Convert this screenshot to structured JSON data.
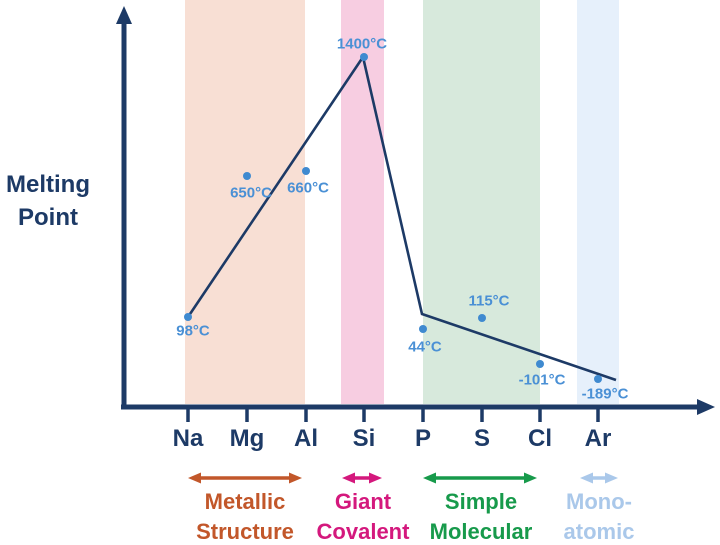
{
  "ylabel": {
    "line1": "Melting",
    "line2": "Point"
  },
  "chart_data": {
    "type": "line",
    "title": "",
    "xlabel": "",
    "ylabel": "Melting Point",
    "y_ticks_shown": false,
    "grid": false,
    "categories": [
      "Na",
      "Mg",
      "Al",
      "Si",
      "P",
      "S",
      "Cl",
      "Ar"
    ],
    "series": [
      {
        "name": "Melting point (°C)",
        "values": [
          98,
          650,
          660,
          1400,
          44,
          115,
          -101,
          -189
        ]
      }
    ],
    "point_labels": [
      "98°C",
      "650°C",
      "660°C",
      "1400°C",
      "44°C",
      "115°C",
      "-101°C",
      "-189°C"
    ],
    "regions": [
      {
        "name": "Metallic Structure",
        "slug": "metallic-structure",
        "label_lines": [
          "Metallic",
          "Structure"
        ],
        "elements": [
          "Na",
          "Mg",
          "Al"
        ],
        "band_color": "#f8dfd4",
        "accent_color": "#c2572a"
      },
      {
        "name": "Giant Covalent",
        "slug": "giant-covalent",
        "label_lines": [
          "Giant",
          "Covalent"
        ],
        "elements": [
          "Si"
        ],
        "band_color": "#f7cde1",
        "accent_color": "#d4187d"
      },
      {
        "name": "Simple Molecular",
        "slug": "simple-molecular",
        "label_lines": [
          "Simple",
          "Molecular"
        ],
        "elements": [
          "P",
          "S",
          "Cl"
        ],
        "band_color": "#d7e9dc",
        "accent_color": "#179a4b"
      },
      {
        "name": "Mono-atomic",
        "slug": "mono-atomic",
        "label_lines": [
          "Mono-",
          "atomic"
        ],
        "elements": [
          "Ar"
        ],
        "band_color": "#e6f0fb",
        "accent_color": "#aac8ea"
      }
    ],
    "colors": {
      "axis": "#1d3a66",
      "trend_line": "#1d3a66",
      "point": "#3f8ad0",
      "point_label": "#4a90d5",
      "element_label": "#1d3a66"
    }
  }
}
